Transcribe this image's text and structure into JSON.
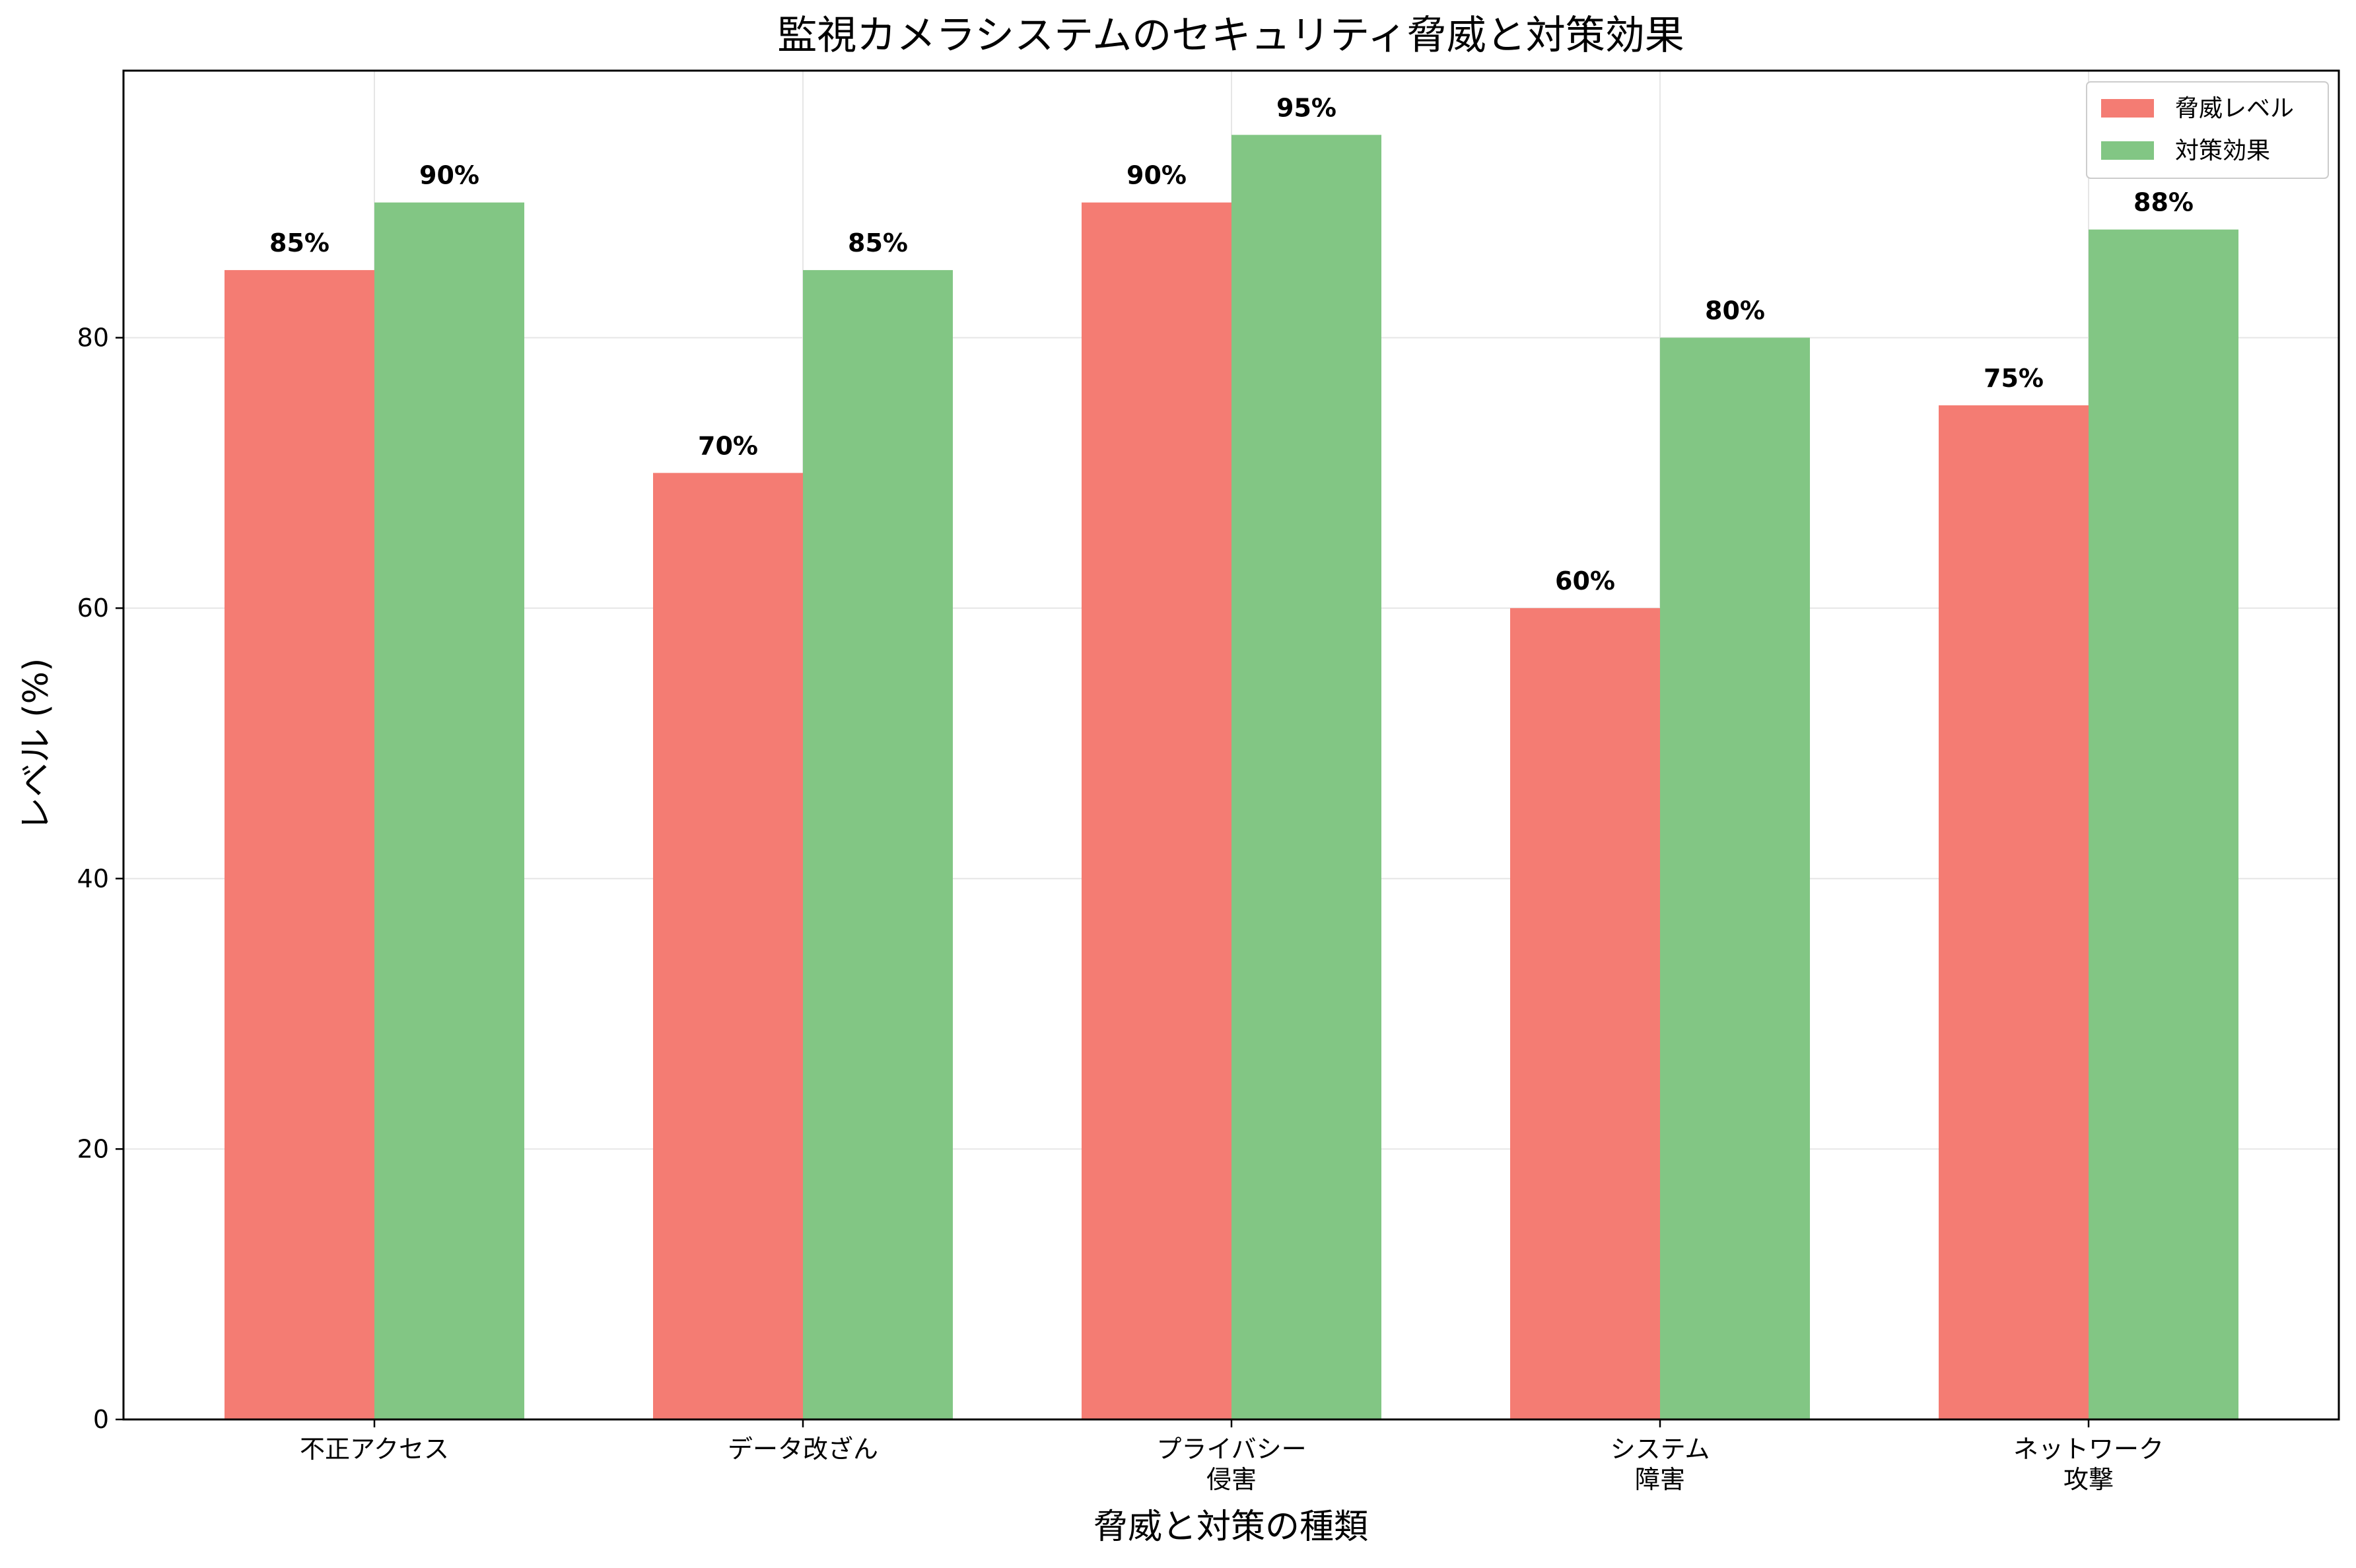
{
  "chart_data": {
    "type": "bar",
    "title": "監視カメラシステムのセキュリティ脅威と対策効果",
    "xlabel": "脅威と対策の種類",
    "ylabel": "レベル (%)",
    "categories": [
      "不正アクセス",
      "データ改ざん",
      "プライバシー\n侵害",
      "システム\n障害",
      "ネットワーク\n攻撃"
    ],
    "series": [
      {
        "name": "脅威レベル",
        "values": [
          85,
          70,
          90,
          60,
          75
        ],
        "color": "#f47c73",
        "labels": [
          "85%",
          "70%",
          "90%",
          "60%",
          "75%"
        ]
      },
      {
        "name": "対策効果",
        "values": [
          90,
          85,
          95,
          80,
          88
        ],
        "color": "#82c684",
        "labels": [
          "90%",
          "85%",
          "95%",
          "80%",
          "88%"
        ]
      }
    ],
    "ylim": [
      0,
      99.75
    ],
    "yticks": [
      0,
      20,
      40,
      60,
      80
    ],
    "grid": true,
    "legend_position": "top-right"
  }
}
